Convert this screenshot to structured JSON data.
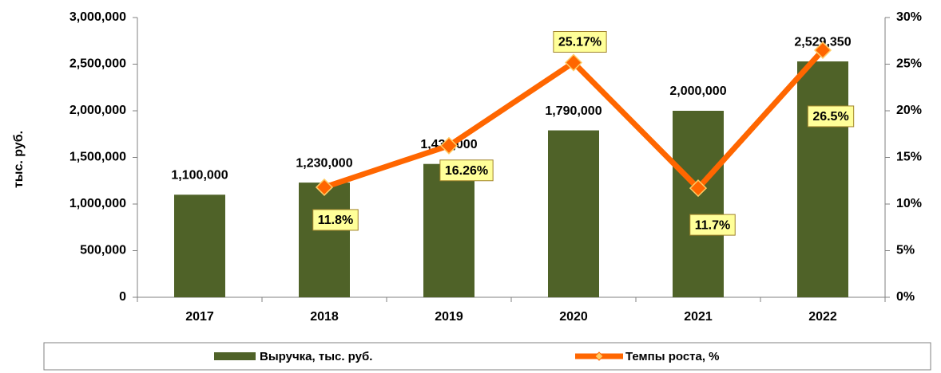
{
  "chart_data": {
    "type": "bar",
    "y_label": "тыс. руб.",
    "categories": [
      "2017",
      "2018",
      "2019",
      "2020",
      "2021",
      "2022"
    ],
    "series": [
      {
        "name": "Выручка, тыс. руб.",
        "type": "bar",
        "color": "#4f6228",
        "values": [
          1100000,
          1230000,
          1430000,
          1790000,
          2000000,
          2529350
        ],
        "value_labels": [
          "1,100,000",
          "1,230,000",
          "1,430,000",
          "1,790,000",
          "2,000,000",
          "2,529,350"
        ]
      },
      {
        "name": "Темпы роста, %",
        "type": "line",
        "axis": "y2",
        "color": "#ff6600",
        "values": [
          null,
          11.8,
          16.26,
          25.17,
          11.7,
          26.5
        ],
        "value_labels": [
          null,
          "11.8%",
          "16.26%",
          "25.17%",
          "11.7%",
          "26.5%"
        ]
      }
    ],
    "ylim": [
      0,
      3000000
    ],
    "yticks": [
      0,
      {
        "value": 500000,
        "label": "500,000"
      },
      {
        "value": 1000000,
        "label": "1,000,000"
      },
      {
        "value": 1500000,
        "label": "1,500,000"
      },
      {
        "value": 2000000,
        "label": "2,000,000"
      },
      {
        "value": 2500000,
        "label": "2,500,000"
      },
      {
        "value": 3000000,
        "label": "3,000,000"
      }
    ],
    "y2lim": [
      0,
      30
    ],
    "y2ticks": [
      {
        "value": 0,
        "label": "0%"
      },
      {
        "value": 5,
        "label": "5%"
      },
      {
        "value": 10,
        "label": "10%"
      },
      {
        "value": 15,
        "label": "15%"
      },
      {
        "value": 20,
        "label": "20%"
      },
      {
        "value": 25,
        "label": "25%"
      },
      {
        "value": 30,
        "label": "30%"
      }
    ],
    "legend": "bottom"
  }
}
